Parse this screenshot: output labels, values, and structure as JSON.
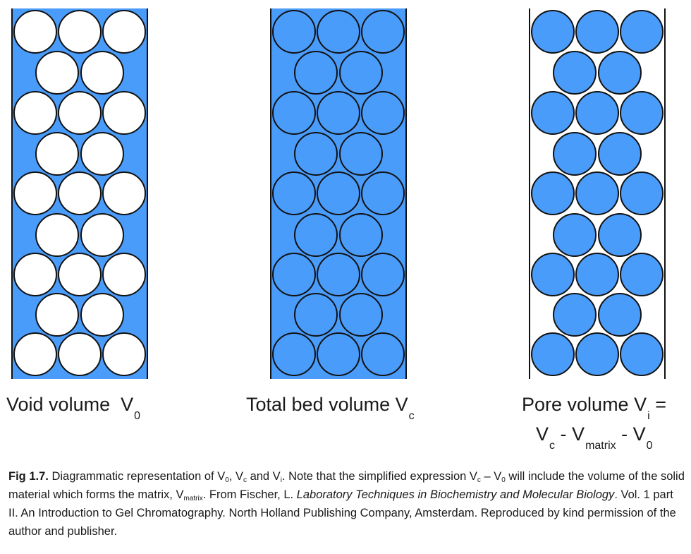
{
  "colors": {
    "fill_blue": "#4a9cfb",
    "outline": "#111111",
    "bead_white": "#ffffff"
  },
  "panels": [
    {
      "name": "void-volume",
      "background": "blue",
      "beads": "white"
    },
    {
      "name": "total-bed-volume",
      "background": "blue",
      "beads": "blue"
    },
    {
      "name": "pore-volume",
      "background": "white",
      "beads": "blue"
    }
  ],
  "labels": {
    "void": {
      "text": "Void volume",
      "symbol": "V",
      "sub": "0"
    },
    "total": {
      "text": "Total bed volume",
      "symbol": "V",
      "sub": "c"
    },
    "pore": {
      "text": "Pore volume",
      "symbol": "V",
      "sub": "i",
      "eq": "=",
      "expr_v1": "V",
      "expr_s1": "c",
      "op1": "-",
      "expr_v2": "V",
      "expr_s2": "matrix",
      "op2": "-",
      "expr_v3": "V",
      "expr_s3": "0"
    }
  },
  "caption": {
    "fig_label": "Fig 1.7.",
    "t1": " Diagrammatic representation of V",
    "s1": "0",
    "t2": ", V",
    "s2": "c",
    "t3": " and V",
    "s3": "i",
    "t4": ". Note that the simplified expression V",
    "s4": "c",
    "t5": " – V",
    "s5": "0",
    "t6": " will include the volume of the solid material which forms the matrix, V",
    "s6": "matrix",
    "t7": ". From Fischer, L. ",
    "italic": "Laboratory Techniques in Biochemistry and Molecular Biology",
    "t8": ". Vol. 1 part II. An Introduction to Gel Chromatography. North Holland Publishing Company, Amsterdam. Reproduced by kind permission of the author and publisher."
  }
}
